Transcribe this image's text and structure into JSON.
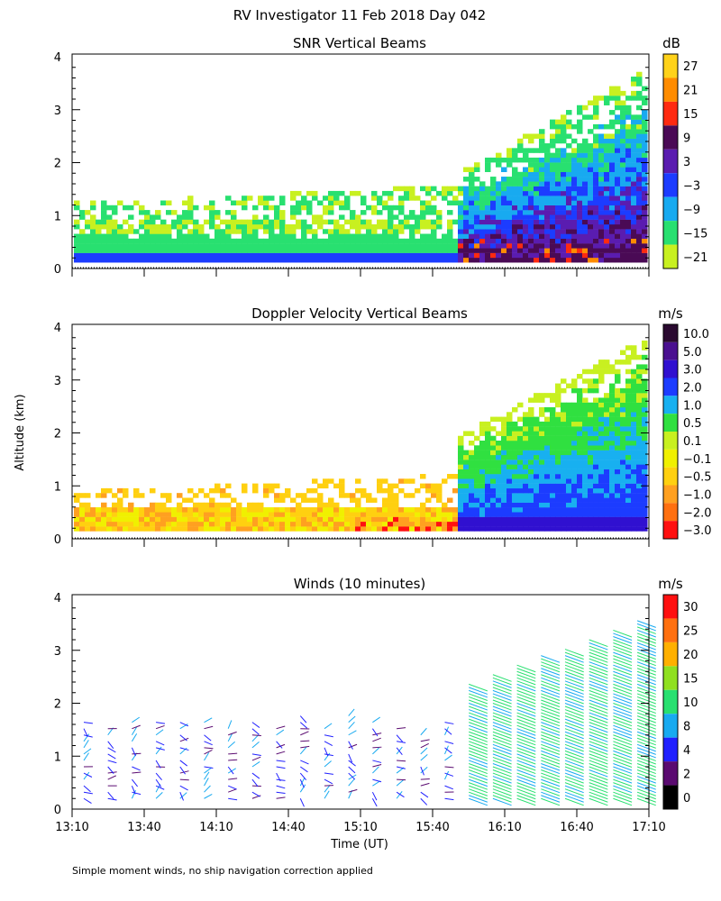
{
  "title": "RV Investigator  11 Feb 2018 Day 042",
  "footnote": "Simple moment winds, no ship navigation correction applied",
  "ylabel": "Altitude (km)",
  "xlabel": "Time (UT)",
  "chart_data": [
    {
      "type": "heatmap",
      "title": "SNR Vertical Beams",
      "unit": "dB",
      "ylim": [
        0,
        4
      ],
      "yticks": [
        "0",
        "1",
        "2",
        "3",
        "4"
      ],
      "colorbar_labels": [
        "27",
        "21",
        "15",
        "9",
        "3",
        "−3",
        "−9",
        "−15",
        "−21"
      ],
      "colorbar_colors": [
        "#ffd21a",
        "#ff8c00",
        "#ff2a10",
        "#4a0a55",
        "#5a1cb0",
        "#1c3cff",
        "#18aaf0",
        "#28e070",
        "#c8f020"
      ]
    },
    {
      "type": "heatmap",
      "title": "Doppler Velocity Vertical Beams",
      "unit": "m/s",
      "ylim": [
        0,
        4
      ],
      "yticks": [
        "0",
        "1",
        "2",
        "3",
        "4"
      ],
      "colorbar_labels": [
        "10.0",
        "5.0",
        "3.0",
        "2.0",
        "1.0",
        "0.5",
        "0.1",
        "−0.1",
        "−0.5",
        "−1.0",
        "−2.0",
        "−3.0"
      ],
      "colorbar_colors": [
        "#2a0a30",
        "#4a1090",
        "#3010d0",
        "#1c3cff",
        "#18b0f0",
        "#30e040",
        "#c8f020",
        "#f0f000",
        "#ffd010",
        "#ffa020",
        "#ff7010",
        "#ff1010"
      ]
    },
    {
      "type": "scatter",
      "title": "Winds (10 minutes)",
      "unit": "m/s",
      "ylim": [
        0,
        4
      ],
      "yticks": [
        "0",
        "1",
        "2",
        "3",
        "4"
      ],
      "colorbar_labels": [
        "30",
        "25",
        "20",
        "15",
        "10",
        "8",
        "4",
        "2",
        "0"
      ],
      "colorbar_colors": [
        "#ff1010",
        "#ff7010",
        "#ffb000",
        "#90e020",
        "#28e070",
        "#18aaf0",
        "#2020ff",
        "#5a0a70",
        "#000000"
      ]
    }
  ],
  "time_axis": {
    "labels": [
      "13:10",
      "13:40",
      "14:10",
      "14:40",
      "15:10",
      "15:40",
      "16:10",
      "16:40",
      "17:10"
    ],
    "range_hours": [
      13.1667,
      17.1667
    ]
  }
}
